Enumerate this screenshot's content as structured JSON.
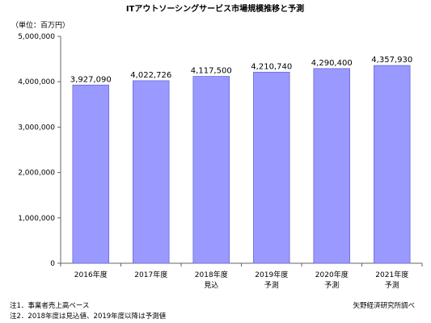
{
  "chart_data": {
    "type": "bar",
    "title": "ITアウトソーシングサービス市場規模推移と予測",
    "unit_label": "（単位：百万円）",
    "categories": [
      [
        "2016年度",
        ""
      ],
      [
        "2017年度",
        ""
      ],
      [
        "2018年度",
        "見込"
      ],
      [
        "2019年度",
        "予測"
      ],
      [
        "2020年度",
        "予測"
      ],
      [
        "2021年度",
        "予測"
      ]
    ],
    "values": [
      3927090,
      4022726,
      4117500,
      4210740,
      4290400,
      4357930
    ],
    "value_labels": [
      "3,927,090",
      "4,022,726",
      "4,117,500",
      "4,210,740",
      "4,290,400",
      "4,357,930"
    ],
    "yticks": [
      0,
      1000000,
      2000000,
      3000000,
      4000000,
      5000000
    ],
    "ytick_labels": [
      "0",
      "1,000,000",
      "2,000,000",
      "3,000,000",
      "4,000,000",
      "5,000,000"
    ],
    "ylim": [
      0,
      5000000
    ],
    "grid": false,
    "bar_color": "#9999ff",
    "bar_edge": "#6b6bd6"
  },
  "notes": {
    "note1": "注1．事業者売上高ベース",
    "note2": "注2．2018年度は見込値、2019年度以降は予測値",
    "source": "矢野経済研究所調べ"
  }
}
